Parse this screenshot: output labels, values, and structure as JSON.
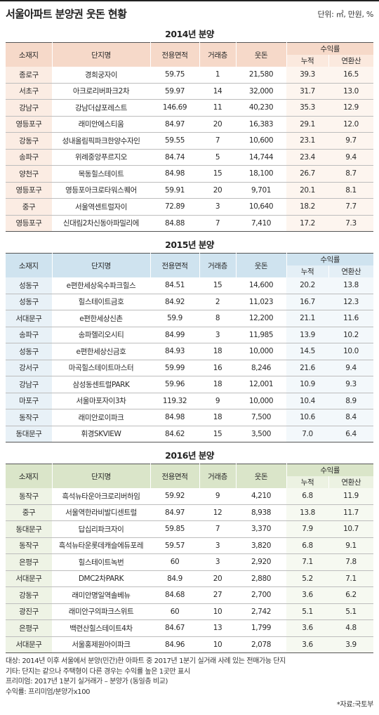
{
  "title": "서울아파트 분양권 웃돈 현황",
  "unit": "단위: ㎡, 만원, %",
  "headers": {
    "region": "소재지",
    "name": "단지명",
    "area": "전용면적",
    "floor": "거래층",
    "premium": "웃돈",
    "return": "수익률",
    "cumulative": "누적",
    "annualized": "연환산"
  },
  "tables": [
    {
      "year": "2014년 분양",
      "rows": [
        {
          "region": "종로구",
          "name": "경희궁자이",
          "area": "59.75",
          "floor": "1",
          "premium": "21,580",
          "cumulative": "39.3",
          "annualized": "16.5"
        },
        {
          "region": "서초구",
          "name": "아크로리버파크2차",
          "area": "59.97",
          "floor": "14",
          "premium": "32,000",
          "cumulative": "31.7",
          "annualized": "13.0"
        },
        {
          "region": "강남구",
          "name": "강남더샵포레스트",
          "area": "146.69",
          "floor": "11",
          "premium": "40,230",
          "cumulative": "35.3",
          "annualized": "12.9"
        },
        {
          "region": "영등포구",
          "name": "래미안에스티움",
          "area": "84.97",
          "floor": "20",
          "premium": "16,383",
          "cumulative": "29.1",
          "annualized": "12.0"
        },
        {
          "region": "강동구",
          "name": "성내올림픽파크한양수자인",
          "area": "59.55",
          "floor": "7",
          "premium": "10,600",
          "cumulative": "23.1",
          "annualized": "9.7"
        },
        {
          "region": "송파구",
          "name": "위례중앙푸르지오",
          "area": "84.74",
          "floor": "5",
          "premium": "14,744",
          "cumulative": "23.4",
          "annualized": "9.4"
        },
        {
          "region": "양천구",
          "name": "목동힐스테이트",
          "area": "84.98",
          "floor": "15",
          "premium": "18,100",
          "cumulative": "26.7",
          "annualized": "8.7"
        },
        {
          "region": "영등포구",
          "name": "영등포아크로타워스퀘어",
          "area": "59.91",
          "floor": "20",
          "premium": "9,701",
          "cumulative": "20.1",
          "annualized": "8.1"
        },
        {
          "region": "중구",
          "name": "서울역센트럴자이",
          "area": "72.89",
          "floor": "3",
          "premium": "10,640",
          "cumulative": "18.2",
          "annualized": "7.7"
        },
        {
          "region": "영등포구",
          "name": "신대림2차신동아파밀리에",
          "area": "84.88",
          "floor": "7",
          "premium": "7,410",
          "cumulative": "17.2",
          "annualized": "7.3"
        }
      ]
    },
    {
      "year": "2015년 분양",
      "rows": [
        {
          "region": "성동구",
          "name": "e편한세상옥수파크힐스",
          "area": "84.51",
          "floor": "15",
          "premium": "14,600",
          "cumulative": "20.2",
          "annualized": "13.8"
        },
        {
          "region": "성동구",
          "name": "힐스테이트금호",
          "area": "84.92",
          "floor": "2",
          "premium": "11,023",
          "cumulative": "16.7",
          "annualized": "12.3"
        },
        {
          "region": "서대문구",
          "name": "e편한세상신촌",
          "area": "59.9",
          "floor": "8",
          "premium": "12,200",
          "cumulative": "21.1",
          "annualized": "11.6"
        },
        {
          "region": "송파구",
          "name": "송파헬리오시티",
          "area": "84.99",
          "floor": "3",
          "premium": "11,985",
          "cumulative": "13.9",
          "annualized": "10.2"
        },
        {
          "region": "성동구",
          "name": "e편한세상신금호",
          "area": "84.93",
          "floor": "18",
          "premium": "10,000",
          "cumulative": "14.5",
          "annualized": "10.0"
        },
        {
          "region": "강서구",
          "name": "마곡힐스테이트마스터",
          "area": "59.99",
          "floor": "16",
          "premium": "8,246",
          "cumulative": "21.6",
          "annualized": "9.4"
        },
        {
          "region": "강남구",
          "name": "삼성동센트럴PARK",
          "area": "59.96",
          "floor": "18",
          "premium": "12,001",
          "cumulative": "10.9",
          "annualized": "9.3"
        },
        {
          "region": "마포구",
          "name": "서울마포자이3차",
          "area": "119.32",
          "floor": "9",
          "premium": "10,000",
          "cumulative": "10.4",
          "annualized": "8.9"
        },
        {
          "region": "동작구",
          "name": "래미안로이파크",
          "area": "84.98",
          "floor": "18",
          "premium": "7,500",
          "cumulative": "10.6",
          "annualized": "8.4"
        },
        {
          "region": "동대문구",
          "name": "휘경SKVIEW",
          "area": "84.62",
          "floor": "15",
          "premium": "3,500",
          "cumulative": "7.0",
          "annualized": "6.4"
        }
      ]
    },
    {
      "year": "2016년 분양",
      "rows": [
        {
          "region": "동작구",
          "name": "흑석뉴타운아크로리버하임",
          "area": "59.92",
          "floor": "9",
          "premium": "4,210",
          "cumulative": "6.8",
          "annualized": "11.9"
        },
        {
          "region": "중구",
          "name": "서울역한라비발디센트럴",
          "area": "84.97",
          "floor": "12",
          "premium": "8,938",
          "cumulative": "13.8",
          "annualized": "11.7"
        },
        {
          "region": "동대문구",
          "name": "답십리파크자이",
          "area": "59.85",
          "floor": "7",
          "premium": "3,370",
          "cumulative": "7.9",
          "annualized": "10.7"
        },
        {
          "region": "동작구",
          "name": "흑석뉴타운롯데캐슬에듀포레",
          "area": "59.57",
          "floor": "3",
          "premium": "3,820",
          "cumulative": "6.8",
          "annualized": "9.1"
        },
        {
          "region": "은평구",
          "name": "힐스테이트녹번",
          "area": "60",
          "floor": "3",
          "premium": "2,920",
          "cumulative": "7.1",
          "annualized": "7.8"
        },
        {
          "region": "서대문구",
          "name": "DMC2차PARK",
          "area": "84.9",
          "floor": "20",
          "premium": "2,880",
          "cumulative": "5.2",
          "annualized": "7.1"
        },
        {
          "region": "강동구",
          "name": "래미안명일역솔베뉴",
          "area": "84.68",
          "floor": "27",
          "premium": "2,700",
          "cumulative": "3.6",
          "annualized": "6.2"
        },
        {
          "region": "광진구",
          "name": "래미안구의파크스위트",
          "area": "60",
          "floor": "10",
          "premium": "2,742",
          "cumulative": "5.1",
          "annualized": "5.1"
        },
        {
          "region": "은평구",
          "name": "백련산힐스테이트4차",
          "area": "84.67",
          "floor": "13",
          "premium": "1,799",
          "cumulative": "3.6",
          "annualized": "4.8"
        },
        {
          "region": "서대문구",
          "name": "서울홍제원아이파크",
          "area": "84.96",
          "floor": "10",
          "premium": "2,078",
          "cumulative": "3.6",
          "annualized": "3.9"
        }
      ]
    }
  ],
  "notes": [
    "대상: 2014년 이후 서울에서 분양(민간)한 아파트 중 2017년 1분기 실거래 사례 있는 전매가능 단지",
    "기타: 단지는 같으나 주택형이 다른 경우는 수익률 높은 1곳만 표시",
    "프리미엄: 2017년 1분기 실거래가 – 분양가 (동일층 비교)",
    "수익률: 프리미엄/분양가x100"
  ],
  "source": "*자료:국토부"
}
